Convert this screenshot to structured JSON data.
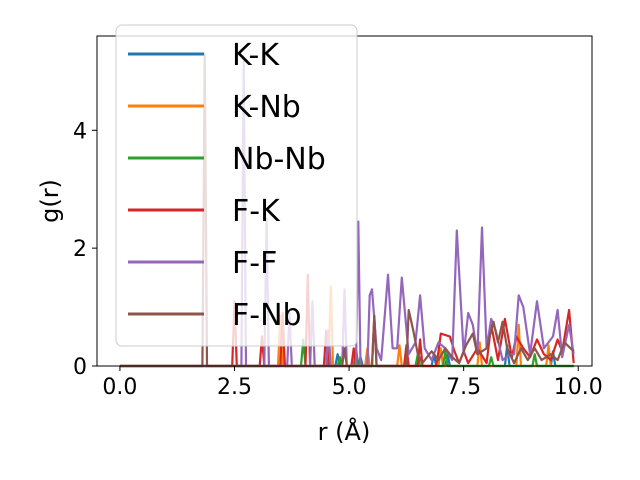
{
  "chart_data": {
    "type": "line",
    "xlabel": "r (Å)",
    "ylabel": "g(r)",
    "xlim": [
      -0.5,
      10.3
    ],
    "ylim": [
      0,
      5.6
    ],
    "x_ticks": [
      0.0,
      2.5,
      5.0,
      7.5,
      10.0
    ],
    "x_tick_labels": [
      "0.0",
      "2.5",
      "5.0",
      "7.5",
      "10.0"
    ],
    "y_ticks": [
      0,
      2,
      4
    ],
    "y_tick_labels": [
      "0",
      "2",
      "4"
    ],
    "grid": false,
    "legend_position": "top-left",
    "series": [
      {
        "name": "K-K",
        "color": "#1f77b4",
        "points": [
          [
            0,
            0
          ],
          [
            3.5,
            0
          ],
          [
            3.55,
            0.35
          ],
          [
            3.6,
            0
          ],
          [
            4.7,
            0
          ],
          [
            4.75,
            0.2
          ],
          [
            4.8,
            0
          ],
          [
            5.2,
            0
          ],
          [
            5.25,
            0.15
          ],
          [
            5.3,
            0
          ],
          [
            6.8,
            0
          ],
          [
            6.85,
            0.2
          ],
          [
            6.9,
            0
          ],
          [
            7.1,
            0
          ],
          [
            7.15,
            0.2
          ],
          [
            7.2,
            0
          ],
          [
            8.4,
            0
          ],
          [
            8.45,
            0.35
          ],
          [
            8.5,
            0
          ],
          [
            9.4,
            0
          ],
          [
            9.45,
            0.25
          ],
          [
            9.5,
            0
          ],
          [
            9.9,
            0
          ]
        ]
      },
      {
        "name": "K-Nb",
        "color": "#ff7f0e",
        "points": [
          [
            0,
            0
          ],
          [
            3.45,
            0
          ],
          [
            3.5,
            0.85
          ],
          [
            3.55,
            0
          ],
          [
            4.55,
            0
          ],
          [
            4.6,
            1.35
          ],
          [
            4.65,
            0
          ],
          [
            5.35,
            0
          ],
          [
            5.4,
            0.3
          ],
          [
            5.45,
            0
          ],
          [
            6.05,
            0
          ],
          [
            6.1,
            0.35
          ],
          [
            6.15,
            0
          ],
          [
            6.95,
            0
          ],
          [
            7.0,
            0.3
          ],
          [
            7.05,
            0
          ],
          [
            7.8,
            0
          ],
          [
            7.85,
            0.4
          ],
          [
            7.9,
            0
          ],
          [
            8.65,
            0
          ],
          [
            8.7,
            0.7
          ],
          [
            8.75,
            0
          ],
          [
            9.3,
            0
          ],
          [
            9.35,
            0.35
          ],
          [
            9.4,
            0
          ],
          [
            9.9,
            0
          ]
        ]
      },
      {
        "name": "Nb-Nb",
        "color": "#2ca02c",
        "points": [
          [
            0,
            0
          ],
          [
            3.95,
            0
          ],
          [
            4.0,
            0.45
          ],
          [
            4.05,
            0
          ],
          [
            4.75,
            0
          ],
          [
            4.8,
            0.15
          ],
          [
            4.85,
            0
          ],
          [
            5.1,
            0
          ],
          [
            5.15,
            0.3
          ],
          [
            5.2,
            0
          ],
          [
            6.45,
            0
          ],
          [
            6.5,
            0.2
          ],
          [
            6.55,
            0
          ],
          [
            7.05,
            0
          ],
          [
            7.1,
            0.25
          ],
          [
            7.15,
            0
          ],
          [
            8.05,
            0
          ],
          [
            8.1,
            0.15
          ],
          [
            8.15,
            0
          ],
          [
            9.0,
            0
          ],
          [
            9.05,
            0.2
          ],
          [
            9.1,
            0
          ],
          [
            9.9,
            0
          ]
        ]
      },
      {
        "name": "F-K",
        "color": "#d62728",
        "points": [
          [
            0,
            0
          ],
          [
            2.45,
            0
          ],
          [
            2.5,
            1.1
          ],
          [
            2.55,
            0
          ],
          [
            3.05,
            0
          ],
          [
            3.1,
            0.5
          ],
          [
            3.15,
            0
          ],
          [
            3.5,
            0
          ],
          [
            3.55,
            0.9
          ],
          [
            3.6,
            0
          ],
          [
            4.05,
            0
          ],
          [
            4.1,
            1.55
          ],
          [
            4.15,
            0
          ],
          [
            4.45,
            0
          ],
          [
            4.5,
            0.6
          ],
          [
            4.55,
            0
          ],
          [
            5.05,
            0
          ],
          [
            5.1,
            0.3
          ],
          [
            5.15,
            0
          ],
          [
            5.5,
            0
          ],
          [
            5.55,
            0.85
          ],
          [
            5.6,
            0
          ],
          [
            6.2,
            0
          ],
          [
            6.25,
            0.35
          ],
          [
            6.3,
            0
          ],
          [
            6.5,
            0
          ],
          [
            6.55,
            0.45
          ],
          [
            6.6,
            0
          ],
          [
            6.9,
            0
          ],
          [
            6.95,
            0.25
          ],
          [
            7.0,
            0.55
          ],
          [
            7.2,
            0.5
          ],
          [
            7.3,
            0.25
          ],
          [
            7.4,
            0.05
          ],
          [
            7.5,
            0.25
          ],
          [
            7.6,
            0.05
          ],
          [
            7.8,
            0.3
          ],
          [
            8.0,
            0.05
          ],
          [
            8.1,
            0.7
          ],
          [
            8.25,
            0.1
          ],
          [
            8.4,
            0.8
          ],
          [
            8.55,
            0.15
          ],
          [
            8.65,
            0.5
          ],
          [
            8.8,
            0.3
          ],
          [
            8.95,
            0.15
          ],
          [
            9.1,
            0.45
          ],
          [
            9.25,
            0.2
          ],
          [
            9.4,
            0.1
          ],
          [
            9.55,
            0.45
          ],
          [
            9.65,
            0.25
          ],
          [
            9.8,
            0.95
          ],
          [
            9.9,
            0.05
          ]
        ]
      },
      {
        "name": "F-F",
        "color": "#9467bd",
        "points": [
          [
            0,
            0
          ],
          [
            2.65,
            0
          ],
          [
            2.7,
            5.2
          ],
          [
            2.75,
            0
          ],
          [
            3.15,
            0
          ],
          [
            3.2,
            2.5
          ],
          [
            3.25,
            0
          ],
          [
            3.65,
            0
          ],
          [
            3.7,
            0.9
          ],
          [
            3.75,
            0
          ],
          [
            4.15,
            0
          ],
          [
            4.2,
            1.1
          ],
          [
            4.25,
            0
          ],
          [
            4.5,
            0
          ],
          [
            4.55,
            0.6
          ],
          [
            4.6,
            0
          ],
          [
            4.85,
            0
          ],
          [
            4.9,
            1.3
          ],
          [
            4.95,
            0
          ],
          [
            5.15,
            0
          ],
          [
            5.2,
            2.45
          ],
          [
            5.25,
            0
          ],
          [
            5.4,
            0
          ],
          [
            5.45,
            1.2
          ],
          [
            5.5,
            1.3
          ],
          [
            5.6,
            0.3
          ],
          [
            5.7,
            0.1
          ],
          [
            5.85,
            1.55
          ],
          [
            5.95,
            0.3
          ],
          [
            6.05,
            0.3
          ],
          [
            6.15,
            1.5
          ],
          [
            6.3,
            0.2
          ],
          [
            6.45,
            0.4
          ],
          [
            6.55,
            1.2
          ],
          [
            6.65,
            0.3
          ],
          [
            6.8,
            0.1
          ],
          [
            6.95,
            0.4
          ],
          [
            7.1,
            0.3
          ],
          [
            7.25,
            0.1
          ],
          [
            7.35,
            2.3
          ],
          [
            7.5,
            0.2
          ],
          [
            7.6,
            0.9
          ],
          [
            7.7,
            0.7
          ],
          [
            7.8,
            0.2
          ],
          [
            7.9,
            2.35
          ],
          [
            8.0,
            0.3
          ],
          [
            8.1,
            0.8
          ],
          [
            8.2,
            0.6
          ],
          [
            8.35,
            0.1
          ],
          [
            8.5,
            0.2
          ],
          [
            8.6,
            0.2
          ],
          [
            8.7,
            1.2
          ],
          [
            8.8,
            1.0
          ],
          [
            8.95,
            0.2
          ],
          [
            9.1,
            1.1
          ],
          [
            9.25,
            0.3
          ],
          [
            9.45,
            0.5
          ],
          [
            9.55,
            0.95
          ],
          [
            9.65,
            0.15
          ],
          [
            9.8,
            0.7
          ],
          [
            9.9,
            0.2
          ]
        ]
      },
      {
        "name": "F-Nb",
        "color": "#8c564b",
        "points": [
          [
            0,
            0
          ],
          [
            1.8,
            0
          ],
          [
            1.85,
            5.3
          ],
          [
            1.9,
            0
          ],
          [
            4.85,
            0
          ],
          [
            4.9,
            0.3
          ],
          [
            4.95,
            0
          ],
          [
            5.5,
            0
          ],
          [
            5.55,
            0.85
          ],
          [
            5.6,
            0
          ],
          [
            6.25,
            0
          ],
          [
            6.3,
            0.95
          ],
          [
            6.4,
            0.6
          ],
          [
            6.5,
            0.2
          ],
          [
            6.6,
            0.05
          ],
          [
            6.8,
            0.25
          ],
          [
            6.95,
            0.1
          ],
          [
            7.1,
            0.3
          ],
          [
            7.25,
            0.15
          ],
          [
            7.4,
            0.05
          ],
          [
            7.55,
            0.35
          ],
          [
            7.7,
            0.55
          ],
          [
            7.8,
            0.2
          ],
          [
            8.0,
            0.3
          ],
          [
            8.15,
            0.75
          ],
          [
            8.25,
            0.4
          ],
          [
            8.35,
            0.75
          ],
          [
            8.45,
            0.3
          ],
          [
            8.6,
            0.05
          ],
          [
            8.75,
            0.3
          ],
          [
            8.9,
            0.1
          ],
          [
            9.05,
            0.3
          ],
          [
            9.2,
            0.1
          ],
          [
            9.4,
            0.2
          ],
          [
            9.55,
            0.1
          ],
          [
            9.7,
            0.4
          ],
          [
            9.9,
            0.25
          ]
        ]
      }
    ]
  }
}
